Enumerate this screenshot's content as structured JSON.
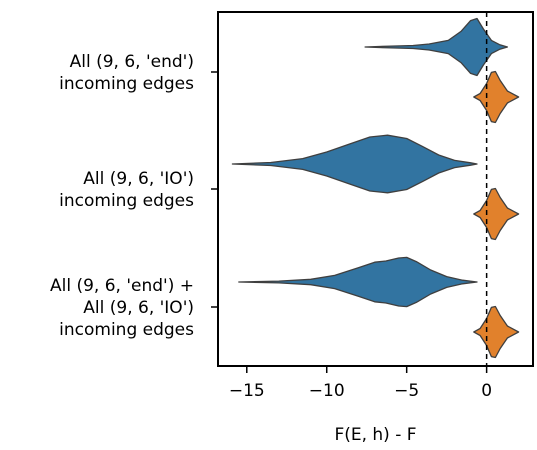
{
  "chart_data": {
    "type": "violin",
    "orientation": "horizontal",
    "xlabel": "F(E, h) - F",
    "ylabel": "",
    "title": "",
    "xlim": [
      -16.8,
      2.9
    ],
    "xticks": [
      -15,
      -10,
      -5,
      0
    ],
    "xtick_labels": [
      "−15",
      "−10",
      "−5",
      "0"
    ],
    "reference_line": {
      "x": 0,
      "style": "dashed"
    },
    "colors": {
      "series_a": "#3274a1",
      "series_b": "#e1812c",
      "edge": "#3f3f3f"
    },
    "categories": [
      {
        "label_lines": [
          "All (9, 6, 'end')",
          "incoming edges"
        ]
      },
      {
        "label_lines": [
          "All (9, 6, 'IO')",
          "incoming edges"
        ]
      },
      {
        "label_lines": [
          "All (9, 6, 'end') +",
          "All (9, 6, 'IO')",
          "incoming edges"
        ]
      }
    ],
    "violins": [
      {
        "category": 0,
        "series": "a",
        "min": -7.6,
        "max": 1.3,
        "profile": [
          [
            -7.6,
            0.0
          ],
          [
            -6.0,
            0.03
          ],
          [
            -4.6,
            0.05
          ],
          [
            -3.6,
            0.1
          ],
          [
            -2.4,
            0.22
          ],
          [
            -1.6,
            0.52
          ],
          [
            -1.0,
            0.88
          ],
          [
            -0.6,
            0.95
          ],
          [
            -0.2,
            0.6
          ],
          [
            0.3,
            0.22
          ],
          [
            0.8,
            0.08
          ],
          [
            1.3,
            0.0
          ]
        ]
      },
      {
        "category": 0,
        "series": "b",
        "min": -0.8,
        "max": 2.0,
        "profile": [
          [
            -0.8,
            0.0
          ],
          [
            -0.4,
            0.12
          ],
          [
            0.0,
            0.45
          ],
          [
            0.3,
            0.82
          ],
          [
            0.55,
            0.85
          ],
          [
            0.85,
            0.55
          ],
          [
            1.3,
            0.2
          ],
          [
            2.0,
            0.0
          ]
        ]
      },
      {
        "category": 1,
        "series": "a",
        "min": -15.9,
        "max": -0.6,
        "profile": [
          [
            -15.9,
            0.0
          ],
          [
            -13.5,
            0.05
          ],
          [
            -11.5,
            0.18
          ],
          [
            -10.0,
            0.4
          ],
          [
            -8.5,
            0.68
          ],
          [
            -7.3,
            0.9
          ],
          [
            -6.2,
            0.96
          ],
          [
            -5.0,
            0.85
          ],
          [
            -4.0,
            0.58
          ],
          [
            -3.0,
            0.3
          ],
          [
            -2.0,
            0.12
          ],
          [
            -1.0,
            0.04
          ],
          [
            -0.6,
            0.0
          ]
        ]
      },
      {
        "category": 1,
        "series": "b",
        "min": -0.8,
        "max": 2.0,
        "profile": [
          [
            -0.8,
            0.0
          ],
          [
            -0.4,
            0.12
          ],
          [
            0.0,
            0.45
          ],
          [
            0.3,
            0.82
          ],
          [
            0.55,
            0.85
          ],
          [
            0.85,
            0.55
          ],
          [
            1.3,
            0.2
          ],
          [
            2.0,
            0.0
          ]
        ]
      },
      {
        "category": 2,
        "series": "a",
        "min": -15.5,
        "max": -0.6,
        "profile": [
          [
            -15.5,
            0.0
          ],
          [
            -13.0,
            0.03
          ],
          [
            -11.0,
            0.09
          ],
          [
            -9.5,
            0.22
          ],
          [
            -8.0,
            0.48
          ],
          [
            -7.0,
            0.66
          ],
          [
            -6.3,
            0.7
          ],
          [
            -5.5,
            0.8
          ],
          [
            -5.0,
            0.82
          ],
          [
            -4.4,
            0.68
          ],
          [
            -3.5,
            0.4
          ],
          [
            -2.5,
            0.18
          ],
          [
            -1.5,
            0.06
          ],
          [
            -0.6,
            0.0
          ]
        ]
      },
      {
        "category": 2,
        "series": "b",
        "min": -0.8,
        "max": 2.0,
        "profile": [
          [
            -0.8,
            0.0
          ],
          [
            -0.4,
            0.12
          ],
          [
            0.0,
            0.45
          ],
          [
            0.3,
            0.82
          ],
          [
            0.55,
            0.85
          ],
          [
            0.85,
            0.55
          ],
          [
            1.3,
            0.2
          ],
          [
            2.0,
            0.0
          ]
        ]
      }
    ]
  }
}
